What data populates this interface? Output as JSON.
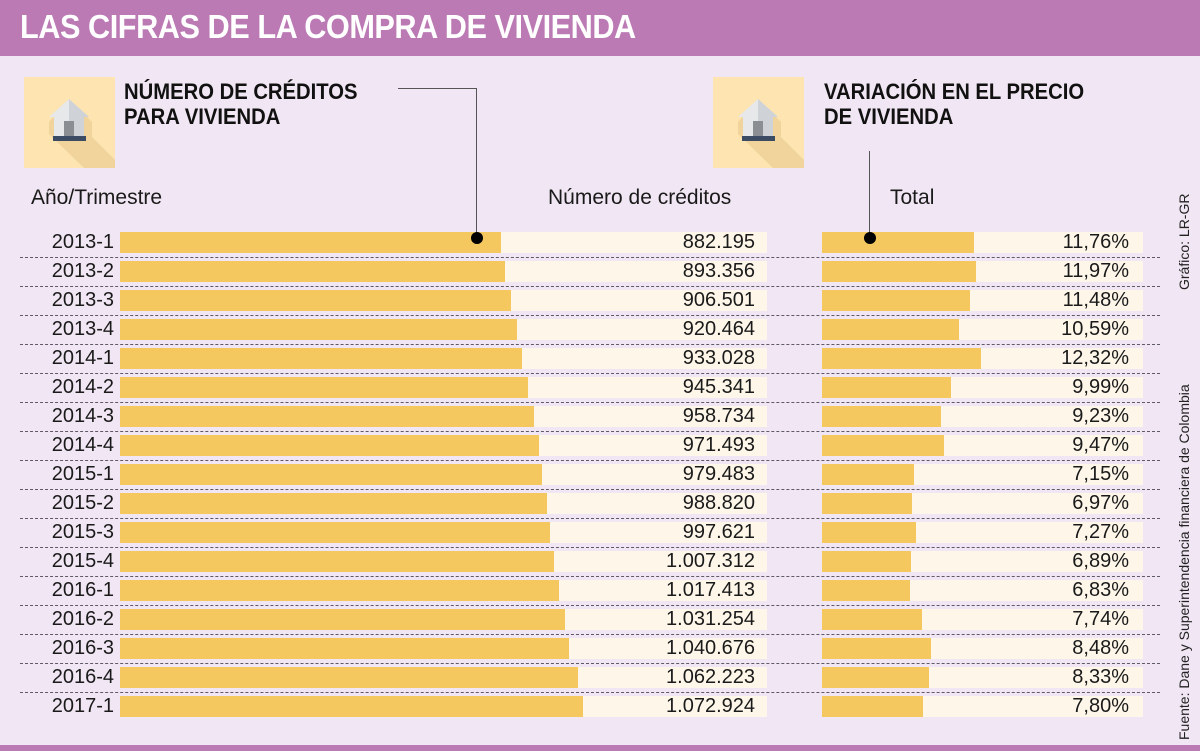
{
  "title": "LAS CIFRAS DE LA COMPRA DE VIVIENDA",
  "left_section": {
    "icon": "house-icon",
    "title_line1": "NÚMERO DE CRÉDITOS",
    "title_line2": "PARA VIVIENDA",
    "row_header": "Año/Trimestre",
    "value_header": "Número de créditos"
  },
  "right_section": {
    "icon": "house-icon",
    "title_line1": "VARIACIÓN EN EL PRECIO",
    "title_line2": "DE VIVIENDA",
    "value_header": "Total"
  },
  "credit": "Gráfico: LR-GR",
  "source": "Fuente: Dane y Superintendencia financiera de Colombia",
  "colors": {
    "header": "#bb7ab4",
    "bar": "#f4c75f",
    "bar_track": "#fdf6e9",
    "background": "#f1e6f3"
  },
  "chart_data": [
    {
      "type": "bar",
      "orientation": "horizontal",
      "title": "NÚMERO DE CRÉDITOS PARA VIVIENDA",
      "xlabel": "Número de créditos",
      "ylabel": "Año/Trimestre",
      "categories": [
        "2013-1",
        "2013-2",
        "2013-3",
        "2013-4",
        "2014-1",
        "2014-2",
        "2014-3",
        "2014-4",
        "2015-1",
        "2015-2",
        "2015-3",
        "2015-4",
        "2016-1",
        "2016-2",
        "2016-3",
        "2016-4",
        "2017-1"
      ],
      "values": [
        882195,
        893356,
        906501,
        920464,
        933028,
        945341,
        958734,
        971493,
        979483,
        988820,
        997621,
        1007312,
        1017413,
        1031254,
        1040676,
        1062223,
        1072924
      ],
      "value_labels": [
        "882.195",
        "893.356",
        "906.501",
        "920.464",
        "933.028",
        "945.341",
        "958.734",
        "971.493",
        "979.483",
        "988.820",
        "997.621",
        "1.007.312",
        "1.017.413",
        "1.031.254",
        "1.040.676",
        "1.062.223",
        "1.072.924"
      ],
      "xlim": [
        0,
        1500000
      ],
      "grid": false
    },
    {
      "type": "bar",
      "orientation": "horizontal",
      "title": "VARIACIÓN EN EL PRECIO DE VIVIENDA",
      "xlabel": "Total",
      "categories": [
        "2013-1",
        "2013-2",
        "2013-3",
        "2013-4",
        "2014-1",
        "2014-2",
        "2014-3",
        "2014-4",
        "2015-1",
        "2015-2",
        "2015-3",
        "2015-4",
        "2016-1",
        "2016-2",
        "2016-3",
        "2016-4",
        "2017-1"
      ],
      "values": [
        11.76,
        11.97,
        11.48,
        10.59,
        12.32,
        9.99,
        9.23,
        9.47,
        7.15,
        6.97,
        7.27,
        6.89,
        6.83,
        7.74,
        8.48,
        8.33,
        7.8
      ],
      "value_labels": [
        "11,76%",
        "11,97%",
        "11,48%",
        "10,59%",
        "12,32%",
        "9,99%",
        "9,23%",
        "9,47%",
        "7,15%",
        "6,97%",
        "7,27%",
        "6,89%",
        "6,83%",
        "7,74%",
        "8,48%",
        "8,33%",
        "7,80%"
      ],
      "unit": "%",
      "xlim": [
        0,
        24.9
      ],
      "grid": false
    }
  ]
}
